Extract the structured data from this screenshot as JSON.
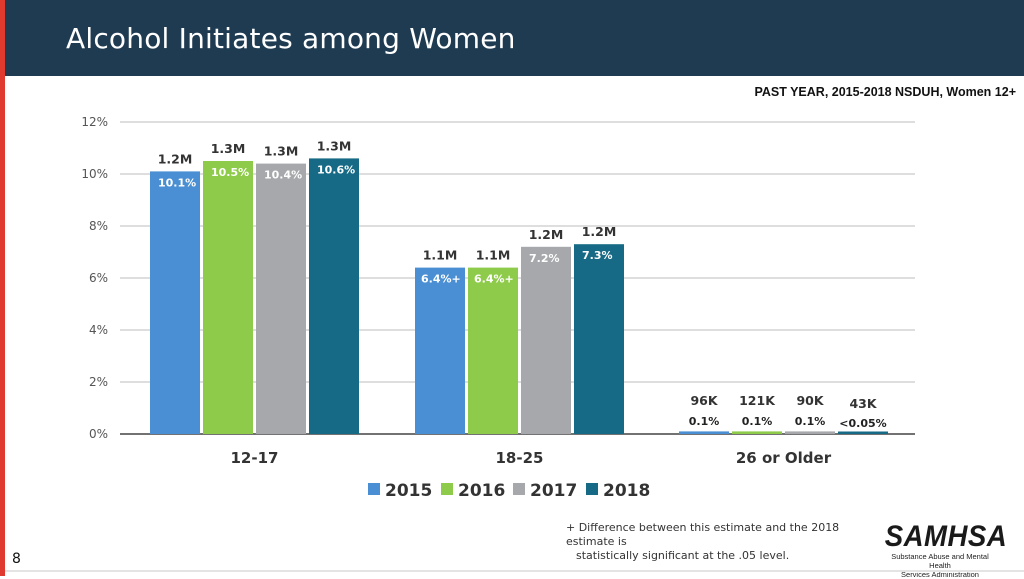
{
  "header": {
    "title": "Alcohol Initiates among Women"
  },
  "subtitle": "PAST YEAR, 2015-2018 NSDUH, Women 12+",
  "footnote": {
    "line1": "+ Difference between this estimate and the 2018 estimate is",
    "line2": "statistically significant at the .05 level."
  },
  "page_number": "8",
  "logo": {
    "name": "SAMHSA",
    "subtitle_line1": "Substance Abuse and Mental Health",
    "subtitle_line2": "Services Administration"
  },
  "colors": {
    "2015": "#4a8fd3",
    "2016": "#8fcb4a",
    "2017": "#a6a8ab",
    "2018": "#176a86"
  },
  "chart_data": {
    "type": "bar",
    "title": "",
    "xlabel": "",
    "ylabel": "",
    "ylim": [
      0,
      12
    ],
    "yticks": [
      0,
      2,
      4,
      6,
      8,
      10,
      12
    ],
    "ytick_labels": [
      "0%",
      "2%",
      "4%",
      "6%",
      "8%",
      "10%",
      "12%"
    ],
    "categories": [
      "12-17",
      "18-25",
      "26 or Older"
    ],
    "legend_position": "bottom-center",
    "series": [
      {
        "name": "2015",
        "values": [
          10.1,
          6.4,
          0.1
        ],
        "labels": [
          "10.1%",
          "6.4%",
          "0.1%"
        ],
        "counts": [
          "1.2M",
          "1.1M",
          "96K"
        ],
        "sig": [
          false,
          true,
          false
        ]
      },
      {
        "name": "2016",
        "values": [
          10.5,
          6.4,
          0.1
        ],
        "labels": [
          "10.5%",
          "6.4%",
          "0.1%"
        ],
        "counts": [
          "1.3M",
          "1.1M",
          "121K"
        ],
        "sig": [
          false,
          true,
          false
        ]
      },
      {
        "name": "2017",
        "values": [
          10.4,
          7.2,
          0.1
        ],
        "labels": [
          "10.4%",
          "7.2%",
          "0.1%"
        ],
        "counts": [
          "1.3M",
          "1.2M",
          "90K"
        ],
        "sig": [
          false,
          false,
          false
        ]
      },
      {
        "name": "2018",
        "values": [
          10.6,
          7.3,
          0.02
        ],
        "labels": [
          "10.6%",
          "7.3%",
          "<0.05%"
        ],
        "counts": [
          "1.3M",
          "1.2M",
          "43K"
        ],
        "sig": [
          false,
          false,
          false
        ]
      }
    ]
  }
}
